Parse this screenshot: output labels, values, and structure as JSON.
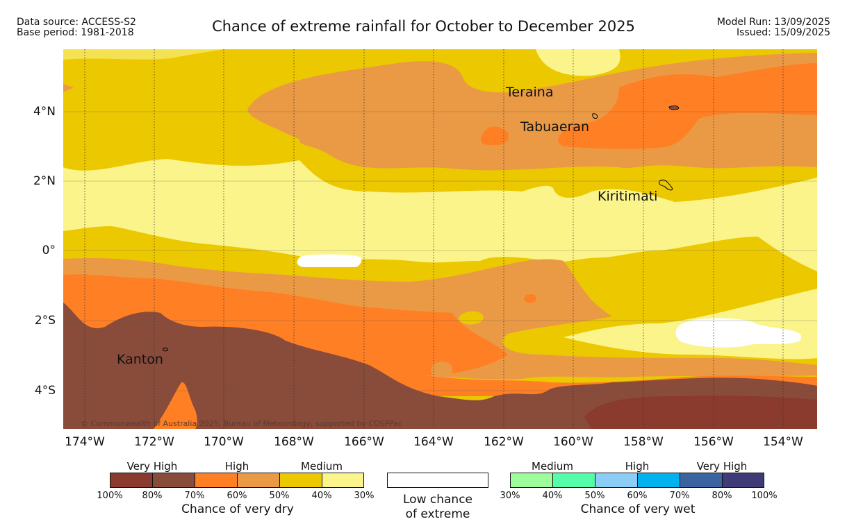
{
  "header": {
    "data_source": "Data source: ACCESS-S2",
    "base_period": "Base period: 1981-2018",
    "title": "Chance of extreme rainfall for October to December 2025",
    "model_run": "Model Run: 13/09/2025",
    "issued": "Issued: 15/09/2025"
  },
  "map": {
    "places": [
      "Teraina",
      "Tabuaeran",
      "Kiritimati",
      "Kanton"
    ],
    "copyright": "© Commonwealth of Australia 2025, Bureau of Meteorology, supported by COSPPac",
    "lat_labels": [
      "4°N",
      "2°N",
      "0°",
      "2°S",
      "4°S"
    ],
    "lon_labels": [
      "174°W",
      "172°W",
      "170°W",
      "168°W",
      "166°W",
      "164°W",
      "162°W",
      "160°W",
      "158°W",
      "156°W",
      "154°W"
    ]
  },
  "legend": {
    "dry": {
      "groups": [
        "Very High",
        "High",
        "Medium"
      ],
      "ticks": [
        "100%",
        "80%",
        "70%",
        "60%",
        "50%",
        "40%",
        "30%"
      ],
      "caption": "Chance of very dry",
      "colors": [
        "#8b3a2e",
        "#894b3a",
        "#ff7f24",
        "#ea9a45",
        "#ecc800",
        "#fbf48a"
      ]
    },
    "neutral": {
      "line1": "Low chance",
      "line2": "of extreme"
    },
    "wet": {
      "groups": [
        "Medium",
        "High",
        "Very High"
      ],
      "ticks": [
        "30%",
        "40%",
        "50%",
        "60%",
        "70%",
        "80%",
        "100%"
      ],
      "caption": "Chance of very wet",
      "colors": [
        "#9efc9a",
        "#55fdaa",
        "#8ccdf8",
        "#00b2ee",
        "#3a64a0",
        "#3f3b78"
      ]
    }
  }
}
